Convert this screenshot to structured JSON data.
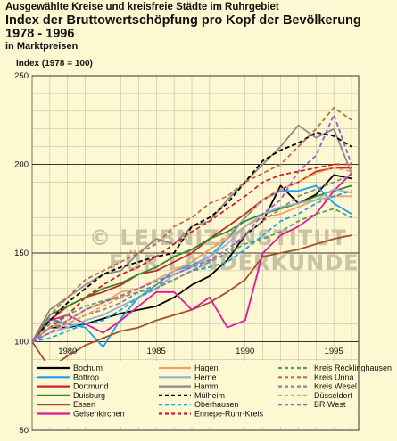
{
  "header": {
    "line1": "Ausgewählte Kreise und kreisfreie Städte im Ruhrgebiet",
    "line2": "Index der Bruttowertschöpfung pro Kopf der Bevölkerung 1978 - 1996",
    "line3": "in Marktpreisen",
    "ylabel": "Index (1978 = 100)"
  },
  "watermark": {
    "line1": "© LEIBNIZ-INSTITUT",
    "line2": "FÜR LÄNDERKUNDE"
  },
  "chart_data": {
    "type": "line",
    "title": "Index der Bruttowertschöpfung pro Kopf der Bevölkerung 1978 - 1996",
    "subtitle": "in Marktpreisen",
    "ylabel": "Index (1978 = 100)",
    "xlabel": "",
    "x": [
      1978,
      1979,
      1980,
      1981,
      1982,
      1983,
      1984,
      1985,
      1986,
      1987,
      1988,
      1989,
      1990,
      1991,
      1992,
      1993,
      1994,
      1995,
      1996
    ],
    "xlim": [
      1978,
      1996.4
    ],
    "ylim": [
      50,
      250
    ],
    "yticks": [
      50,
      100,
      150,
      200,
      250
    ],
    "xticks": [
      1980,
      1985,
      1990,
      1995
    ],
    "grid": true,
    "legend_position": "bottom",
    "series": [
      {
        "name": "Bochum",
        "color": "#000000",
        "dash": "solid",
        "values": [
          100,
          108,
          108,
          110,
          113,
          116,
          118,
          120,
          125,
          132,
          137,
          146,
          160,
          168,
          188,
          178,
          183,
          194,
          192
        ]
      },
      {
        "name": "Bottrop",
        "color": "#1aa3e8",
        "dash": "solid",
        "values": [
          100,
          113,
          110,
          108,
          97,
          113,
          125,
          132,
          140,
          143,
          148,
          158,
          170,
          180,
          185,
          185,
          188,
          178,
          172
        ]
      },
      {
        "name": "Dortmund",
        "color": "#cc2222",
        "dash": "solid",
        "values": [
          100,
          112,
          120,
          125,
          128,
          132,
          138,
          140,
          145,
          150,
          158,
          165,
          172,
          180,
          186,
          190,
          196,
          198,
          198
        ]
      },
      {
        "name": "Duisburg",
        "color": "#2e8a2e",
        "dash": "solid",
        "values": [
          100,
          115,
          120,
          125,
          130,
          133,
          138,
          142,
          148,
          152,
          158,
          162,
          168,
          172,
          175,
          178,
          182,
          185,
          188
        ]
      },
      {
        "name": "Essen",
        "color": "#a0522d",
        "dash": "solid",
        "values": [
          100,
          85,
          92,
          98,
          102,
          106,
          108,
          112,
          115,
          118,
          122,
          128,
          135,
          148,
          150,
          152,
          155,
          158,
          160
        ]
      },
      {
        "name": "Gelsenkirchen",
        "color": "#e0189c",
        "dash": "solid",
        "values": [
          100,
          112,
          115,
          110,
          105,
          112,
          120,
          128,
          128,
          118,
          125,
          108,
          112,
          150,
          160,
          165,
          172,
          185,
          195
        ]
      },
      {
        "name": "Hagen",
        "color": "#f0a060",
        "dash": "solid",
        "values": [
          100,
          108,
          112,
          118,
          122,
          128,
          130,
          135,
          140,
          145,
          152,
          158,
          165,
          170,
          172,
          176,
          180,
          182,
          182
        ]
      },
      {
        "name": "Herne",
        "color": "#9ab0d0",
        "dash": "solid",
        "values": [
          100,
          105,
          108,
          112,
          115,
          120,
          125,
          130,
          138,
          142,
          148,
          155,
          165,
          172,
          176,
          178,
          180,
          186,
          184
        ]
      },
      {
        "name": "Hamm",
        "color": "#8a8a8a",
        "dash": "solid",
        "values": [
          100,
          118,
          125,
          132,
          138,
          140,
          150,
          158,
          155,
          165,
          168,
          180,
          190,
          200,
          210,
          222,
          215,
          220,
          195
        ]
      },
      {
        "name": "Mülheim",
        "color": "#000000",
        "dash": "dash",
        "values": [
          100,
          112,
          122,
          130,
          138,
          142,
          145,
          148,
          150,
          165,
          170,
          178,
          190,
          202,
          208,
          212,
          218,
          216,
          210
        ]
      },
      {
        "name": "Oberhausen",
        "color": "#1aa3e8",
        "dash": "dash",
        "values": [
          100,
          102,
          106,
          110,
          112,
          118,
          125,
          130,
          135,
          140,
          142,
          145,
          152,
          160,
          168,
          172,
          178,
          182,
          185
        ]
      },
      {
        "name": "Ennepe-Ruhr-Kreis",
        "color": "#cc2222",
        "dash": "dash",
        "values": [
          100,
          108,
          115,
          125,
          132,
          138,
          142,
          148,
          155,
          162,
          168,
          175,
          182,
          190,
          194,
          196,
          198,
          200,
          200
        ]
      },
      {
        "name": "Kreis Recklinghausen",
        "color": "#5aa05a",
        "dash": "dash",
        "values": [
          100,
          110,
          115,
          120,
          123,
          125,
          128,
          132,
          135,
          140,
          145,
          150,
          155,
          158,
          162,
          168,
          172,
          175,
          170
        ]
      },
      {
        "name": "Kreis Unna",
        "color": "#c06a4a",
        "dash": "dash",
        "values": [
          100,
          115,
          125,
          135,
          140,
          145,
          150,
          155,
          165,
          170,
          178,
          182,
          190,
          195,
          200,
          210,
          220,
          232,
          225
        ]
      },
      {
        "name": "Kreis Wesel",
        "color": "#8a8a8a",
        "dash": "dash",
        "values": [
          100,
          108,
          110,
          115,
          118,
          122,
          128,
          130,
          135,
          140,
          145,
          150,
          160,
          168,
          175,
          182,
          186,
          190,
          194
        ]
      },
      {
        "name": "Düsseldorf",
        "color": "#f0a060",
        "dash": "dash",
        "values": [
          100,
          105,
          110,
          115,
          120,
          125,
          130,
          135,
          140,
          145,
          152,
          160,
          170,
          180,
          186,
          190,
          195,
          198,
          196
        ]
      },
      {
        "name": "BR West",
        "color": "#9a5acd",
        "dash": "dash",
        "values": [
          100,
          105,
          112,
          118,
          122,
          126,
          130,
          134,
          138,
          142,
          146,
          152,
          160,
          172,
          180,
          196,
          205,
          228,
          200
        ]
      }
    ]
  }
}
